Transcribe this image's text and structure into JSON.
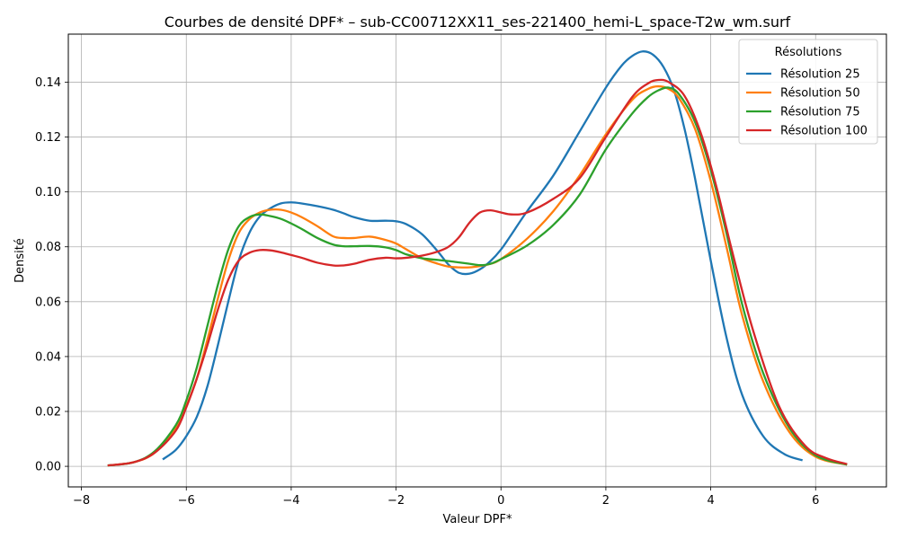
{
  "chart_data": {
    "type": "line",
    "title": "Courbes de densité DPF* – sub-CC00712XX11_ses-221400_hemi-L_space-T2w_wm.surf",
    "xlabel": "Valeur DPF*",
    "ylabel": "Densité",
    "xlim": [
      -8.25,
      7.35
    ],
    "ylim": [
      -0.0075,
      0.1575
    ],
    "x_ticks": [
      -8,
      -6,
      -4,
      -2,
      0,
      2,
      4,
      6
    ],
    "x_tick_labels": [
      "−8",
      "−6",
      "−4",
      "−2",
      "0",
      "2",
      "4",
      "6"
    ],
    "y_ticks": [
      0.0,
      0.02,
      0.04,
      0.06,
      0.08,
      0.1,
      0.12,
      0.14
    ],
    "y_tick_labels": [
      "0.00",
      "0.02",
      "0.04",
      "0.06",
      "0.08",
      "0.10",
      "0.12",
      "0.14"
    ],
    "grid": true,
    "legend": {
      "title": "Résolutions",
      "placement": "top-right"
    },
    "series": [
      {
        "name": "Résolution 25",
        "color": "#1f77b4",
        "x": [
          -6.45,
          -6.2,
          -6.0,
          -5.8,
          -5.6,
          -5.4,
          -5.2,
          -5.0,
          -4.8,
          -4.6,
          -4.4,
          -4.2,
          -4.0,
          -3.8,
          -3.5,
          -3.2,
          -3.0,
          -2.8,
          -2.5,
          -2.2,
          -2.0,
          -1.8,
          -1.5,
          -1.2,
          -1.0,
          -0.8,
          -0.6,
          -0.4,
          -0.2,
          0.0,
          0.2,
          0.5,
          1.0,
          1.5,
          2.0,
          2.3,
          2.5,
          2.7,
          2.9,
          3.1,
          3.3,
          3.5,
          3.7,
          4.0,
          4.3,
          4.6,
          5.0,
          5.4,
          5.75
        ],
        "y": [
          0.0025,
          0.006,
          0.011,
          0.018,
          0.029,
          0.044,
          0.06,
          0.075,
          0.085,
          0.091,
          0.094,
          0.0958,
          0.0962,
          0.0958,
          0.0948,
          0.0935,
          0.0922,
          0.0908,
          0.0895,
          0.0895,
          0.0893,
          0.0882,
          0.0845,
          0.0782,
          0.0735,
          0.0705,
          0.0702,
          0.0718,
          0.0748,
          0.079,
          0.0845,
          0.093,
          0.106,
          0.122,
          0.138,
          0.146,
          0.1495,
          0.1512,
          0.15,
          0.1455,
          0.137,
          0.123,
          0.105,
          0.075,
          0.047,
          0.026,
          0.011,
          0.0045,
          0.0022
        ]
      },
      {
        "name": "Résolution 50",
        "color": "#ff7f0e",
        "x": [
          -7.5,
          -7.0,
          -6.6,
          -6.2,
          -6.0,
          -5.8,
          -5.6,
          -5.4,
          -5.2,
          -5.0,
          -4.8,
          -4.6,
          -4.4,
          -4.2,
          -4.0,
          -3.8,
          -3.5,
          -3.2,
          -3.0,
          -2.8,
          -2.5,
          -2.2,
          -2.0,
          -1.8,
          -1.5,
          -1.2,
          -1.0,
          -0.8,
          -0.6,
          -0.4,
          -0.2,
          0.0,
          0.5,
          1.0,
          1.5,
          2.0,
          2.5,
          2.8,
          3.0,
          3.2,
          3.4,
          3.7,
          4.0,
          4.3,
          4.6,
          5.0,
          5.5,
          6.0,
          6.6
        ],
        "y": [
          0.0003,
          0.0015,
          0.005,
          0.014,
          0.022,
          0.032,
          0.046,
          0.061,
          0.075,
          0.085,
          0.09,
          0.0925,
          0.0935,
          0.0935,
          0.0925,
          0.0908,
          0.0875,
          0.0838,
          0.0832,
          0.0832,
          0.0837,
          0.0825,
          0.0812,
          0.079,
          0.0758,
          0.0738,
          0.0728,
          0.0725,
          0.0725,
          0.073,
          0.0738,
          0.0755,
          0.083,
          0.093,
          0.106,
          0.121,
          0.1335,
          0.1375,
          0.1385,
          0.1375,
          0.134,
          0.123,
          0.104,
          0.08,
          0.055,
          0.031,
          0.0125,
          0.0035,
          0.0006
        ]
      },
      {
        "name": "Résolution 75",
        "color": "#2ca02c",
        "x": [
          -7.5,
          -7.0,
          -6.6,
          -6.2,
          -6.0,
          -5.8,
          -5.6,
          -5.4,
          -5.2,
          -5.0,
          -4.8,
          -4.6,
          -4.4,
          -4.2,
          -4.0,
          -3.8,
          -3.5,
          -3.2,
          -3.0,
          -2.8,
          -2.5,
          -2.2,
          -2.0,
          -1.8,
          -1.5,
          -1.2,
          -1.0,
          -0.8,
          -0.6,
          -0.4,
          -0.2,
          0.0,
          0.5,
          1.0,
          1.5,
          2.0,
          2.5,
          2.8,
          3.0,
          3.2,
          3.4,
          3.7,
          4.0,
          4.3,
          4.6,
          5.0,
          5.5,
          6.0,
          6.6
        ],
        "y": [
          0.0003,
          0.0015,
          0.0055,
          0.015,
          0.024,
          0.036,
          0.051,
          0.066,
          0.079,
          0.0875,
          0.0908,
          0.0918,
          0.0912,
          0.0902,
          0.0885,
          0.0865,
          0.0832,
          0.0808,
          0.0802,
          0.0802,
          0.0803,
          0.0798,
          0.0788,
          0.0772,
          0.0758,
          0.0752,
          0.0748,
          0.0743,
          0.0738,
          0.0733,
          0.0738,
          0.0755,
          0.0805,
          0.088,
          0.099,
          0.1155,
          0.1285,
          0.1345,
          0.137,
          0.138,
          0.1355,
          0.1255,
          0.108,
          0.085,
          0.059,
          0.034,
          0.014,
          0.004,
          0.0006
        ]
      },
      {
        "name": "Résolution 100",
        "color": "#d62728",
        "x": [
          -7.5,
          -7.0,
          -6.6,
          -6.2,
          -6.0,
          -5.8,
          -5.6,
          -5.4,
          -5.2,
          -5.0,
          -4.8,
          -4.6,
          -4.4,
          -4.2,
          -4.0,
          -3.8,
          -3.5,
          -3.2,
          -3.0,
          -2.8,
          -2.5,
          -2.2,
          -2.0,
          -1.8,
          -1.5,
          -1.2,
          -1.0,
          -0.8,
          -0.6,
          -0.4,
          -0.2,
          0.0,
          0.2,
          0.5,
          1.0,
          1.5,
          2.0,
          2.5,
          2.8,
          3.0,
          3.2,
          3.5,
          3.8,
          4.1,
          4.4,
          4.8,
          5.3,
          5.8,
          6.2,
          6.6
        ],
        "y": [
          0.0003,
          0.0015,
          0.005,
          0.013,
          0.0215,
          0.032,
          0.044,
          0.057,
          0.068,
          0.075,
          0.0778,
          0.0788,
          0.0787,
          0.078,
          0.077,
          0.076,
          0.0742,
          0.0732,
          0.0732,
          0.0738,
          0.0753,
          0.076,
          0.0758,
          0.076,
          0.0768,
          0.0783,
          0.08,
          0.0835,
          0.0888,
          0.0925,
          0.0933,
          0.0925,
          0.0918,
          0.0925,
          0.0975,
          0.105,
          0.12,
          0.1345,
          0.1395,
          0.1408,
          0.14,
          0.135,
          0.122,
          0.1025,
          0.079,
          0.05,
          0.022,
          0.0075,
          0.003,
          0.0008
        ]
      }
    ]
  }
}
